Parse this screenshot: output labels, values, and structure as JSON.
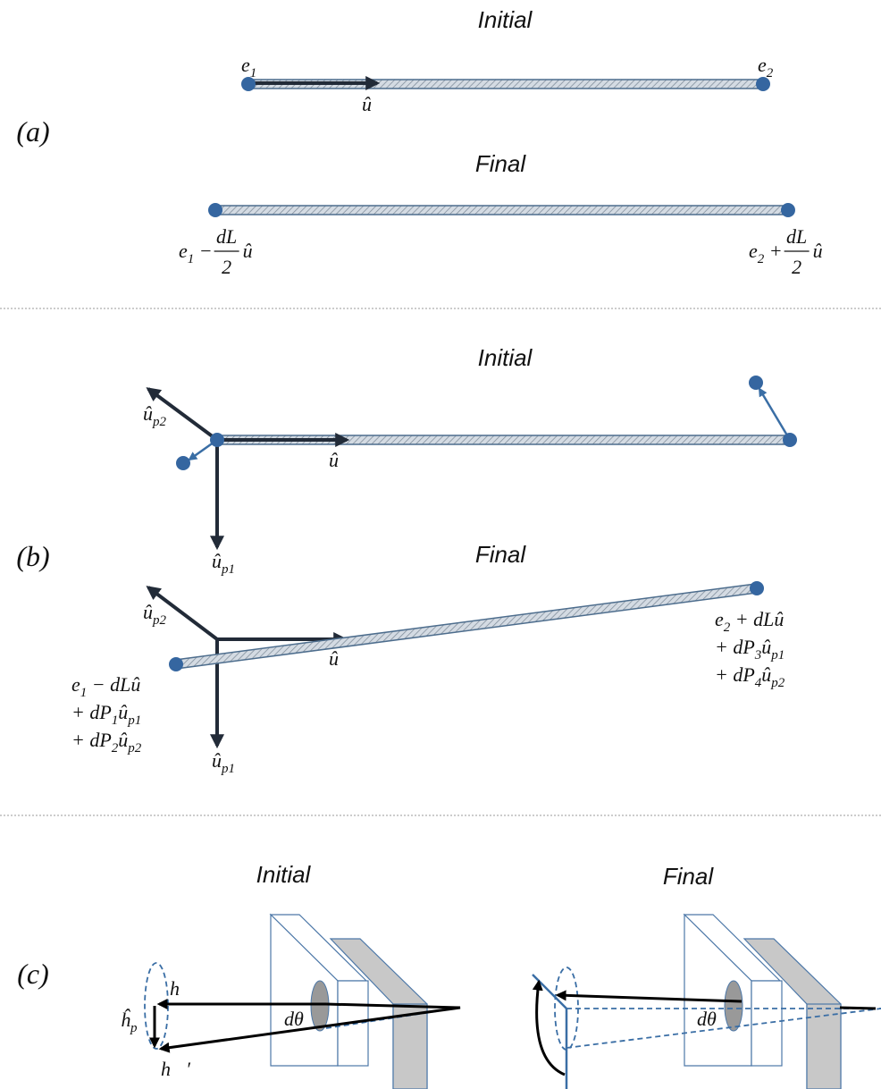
{
  "panel_a": {
    "label": "(a)",
    "initial": {
      "title": "Initial",
      "e1": [
        {
          "t": "e"
        },
        {
          "t": "1",
          "sub": true
        }
      ],
      "e2": [
        {
          "t": "e"
        },
        {
          "t": "2",
          "sub": true
        }
      ],
      "u": [
        {
          "t": "û"
        }
      ]
    },
    "final": {
      "title": "Final",
      "left": {
        "pre": [
          {
            "t": "e"
          },
          {
            "t": "1",
            "sub": true
          },
          {
            "t": " − "
          }
        ],
        "num": "dL",
        "den": "2",
        "post": "û"
      },
      "right": {
        "pre": [
          {
            "t": "e"
          },
          {
            "t": "2",
            "sub": true
          },
          {
            "t": " + "
          }
        ],
        "num": "dL",
        "den": "2",
        "post": "û"
      }
    }
  },
  "panel_b": {
    "label": "(b)",
    "initial": {
      "title": "Initial",
      "u_p2": [
        {
          "t": "û"
        },
        {
          "t": "p2",
          "sub": true
        }
      ],
      "u": [
        {
          "t": "û"
        }
      ],
      "u_p1": [
        {
          "t": "û"
        },
        {
          "t": "p1",
          "sub": true
        }
      ]
    },
    "final": {
      "title": "Final",
      "u_p2": [
        {
          "t": "û"
        },
        {
          "t": "p2",
          "sub": true
        }
      ],
      "u": [
        {
          "t": "û"
        }
      ],
      "u_p1": [
        {
          "t": "û"
        },
        {
          "t": "p1",
          "sub": true
        }
      ],
      "left_lines": [
        [
          {
            "t": "e"
          },
          {
            "t": "1",
            "sub": true
          },
          {
            "t": " − dLû"
          }
        ],
        [
          {
            "t": "+ dP"
          },
          {
            "t": "1",
            "sub": true
          },
          {
            "t": "û"
          },
          {
            "t": "p1",
            "sub": true
          }
        ],
        [
          {
            "t": "+ dP"
          },
          {
            "t": "2",
            "sub": true
          },
          {
            "t": "û"
          },
          {
            "t": "p2",
            "sub": true
          }
        ]
      ],
      "right_lines": [
        [
          {
            "t": "e"
          },
          {
            "t": "2",
            "sub": true
          },
          {
            "t": " + dLû"
          }
        ],
        [
          {
            "t": "+ dP"
          },
          {
            "t": "3",
            "sub": true
          },
          {
            "t": "û"
          },
          {
            "t": "p1",
            "sub": true
          }
        ],
        [
          {
            "t": "+ dP"
          },
          {
            "t": "4",
            "sub": true
          },
          {
            "t": "û"
          },
          {
            "t": "p2",
            "sub": true
          }
        ]
      ]
    }
  },
  "panel_c": {
    "label": "(c)",
    "initial": {
      "title": "Initial",
      "h": [
        {
          "t": "h⃗"
        }
      ],
      "h_p": [
        {
          "t": "ĥ"
        },
        {
          "t": "p",
          "sub": true
        }
      ],
      "h_prime": [
        {
          "t": "h⃗′"
        }
      ],
      "dtheta": [
        {
          "t": "dθ"
        }
      ]
    },
    "final": {
      "title": "Final",
      "dtheta": [
        {
          "t": "dθ"
        }
      ]
    }
  }
}
